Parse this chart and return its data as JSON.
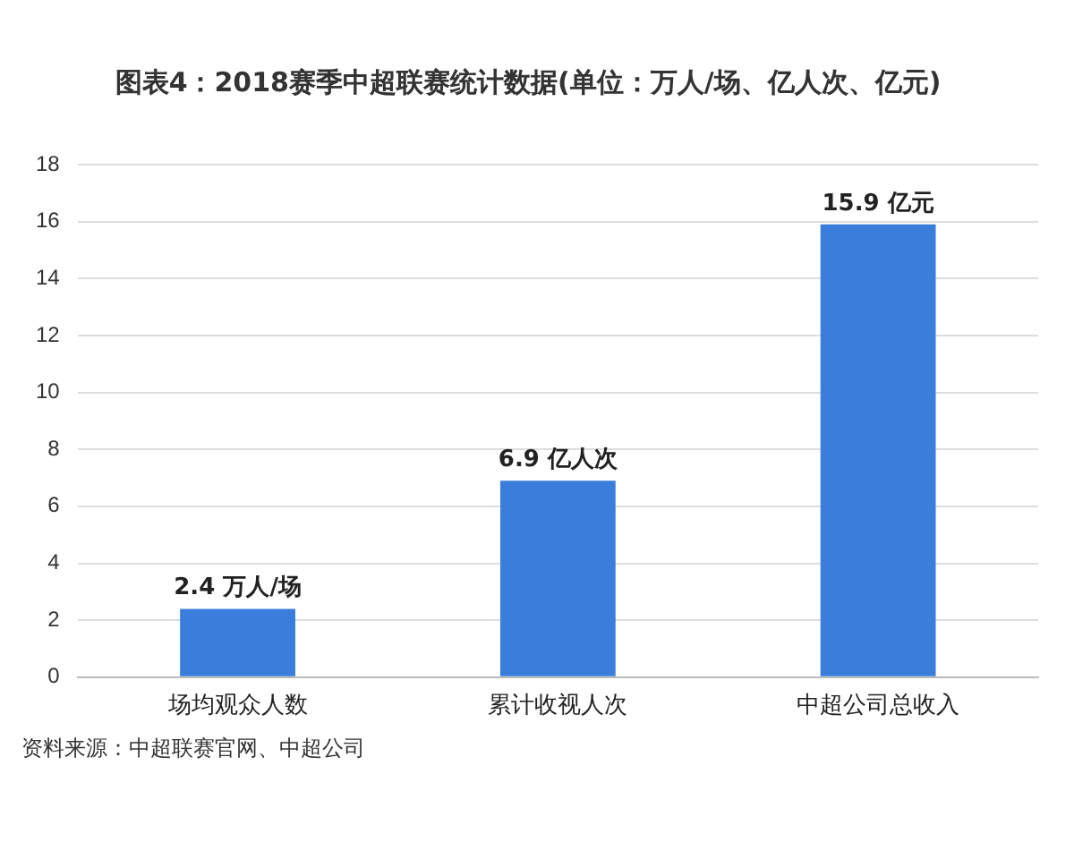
{
  "chart_data": {
    "type": "bar",
    "title": "图表4：2018赛季中超联赛统计数据(单位：万人/场、亿人次、亿元)",
    "categories": [
      "场均观众人数",
      "累计收视人次",
      "中超公司总收入"
    ],
    "values": [
      2.4,
      6.9,
      15.9
    ],
    "value_labels": [
      "2.4 万人/场",
      "6.9 亿人次",
      "15.9 亿元"
    ],
    "color": "#3a7ddb",
    "ylim": [
      0,
      18
    ],
    "yticks": [
      0,
      2,
      4,
      6,
      8,
      10,
      12,
      14,
      16,
      18
    ],
    "grid": "y",
    "annotations": [
      "资料来源：中超联赛官网、中超公司"
    ]
  }
}
